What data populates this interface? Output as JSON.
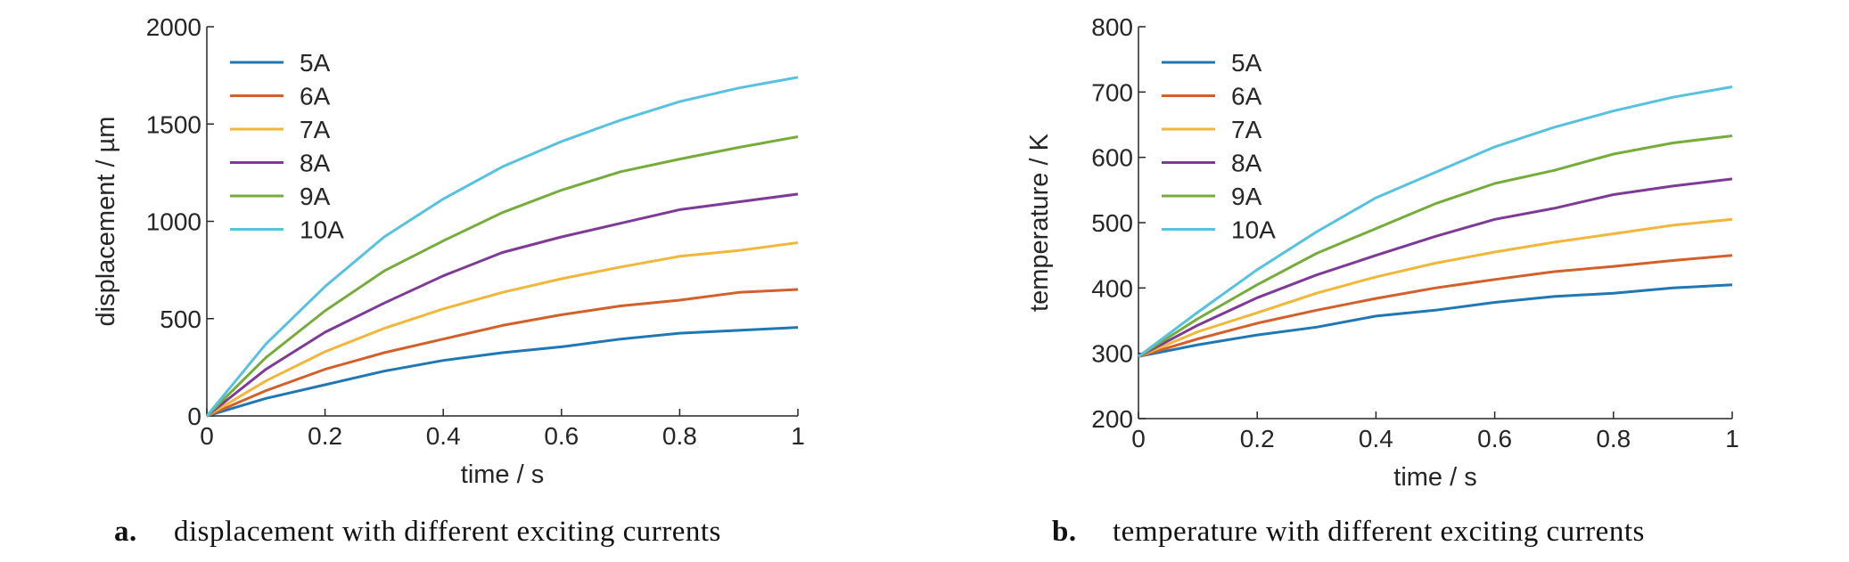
{
  "colors": {
    "5A": "#1f77b4",
    "6A": "#d35f2a",
    "7A": "#f0b73a",
    "8A": "#7e3a96",
    "9A": "#76ac3a",
    "10A": "#56c2e0",
    "axis": "#262626"
  },
  "chart_data": [
    {
      "type": "line",
      "caption_letter": "a.",
      "caption_text": "displacement with different exciting currents",
      "xlabel": "time / s",
      "ylabel": "displacement / µm",
      "xlim": [
        0,
        1
      ],
      "ylim": [
        0,
        2000
      ],
      "xticks": [
        0,
        0.2,
        0.4,
        0.6,
        0.8,
        1
      ],
      "xtick_labels": [
        "0",
        "0.2",
        "0.4",
        "0.6",
        "0.8",
        "1"
      ],
      "yticks": [
        0,
        500,
        1000,
        1500,
        2000
      ],
      "ytick_labels": [
        "0",
        "500",
        "1000",
        "1500",
        "2000"
      ],
      "legend_position": "top-left",
      "grid": false,
      "x": [
        0,
        0.1,
        0.2,
        0.3,
        0.4,
        0.5,
        0.6,
        0.7,
        0.8,
        0.9,
        1.0
      ],
      "series": [
        {
          "name": "5A",
          "values": [
            0,
            90,
            160,
            230,
            285,
            325,
            355,
            395,
            425,
            440,
            455
          ]
        },
        {
          "name": "6A",
          "values": [
            0,
            130,
            240,
            325,
            395,
            465,
            520,
            565,
            595,
            635,
            650
          ]
        },
        {
          "name": "7A",
          "values": [
            0,
            180,
            330,
            450,
            550,
            635,
            705,
            765,
            820,
            850,
            890
          ]
        },
        {
          "name": "8A",
          "values": [
            0,
            240,
            430,
            580,
            720,
            840,
            920,
            990,
            1060,
            1100,
            1140
          ]
        },
        {
          "name": "9A",
          "values": [
            0,
            300,
            540,
            745,
            900,
            1045,
            1160,
            1255,
            1320,
            1380,
            1435
          ]
        },
        {
          "name": "10A",
          "values": [
            0,
            370,
            665,
            920,
            1115,
            1280,
            1410,
            1520,
            1615,
            1685,
            1740
          ]
        }
      ]
    },
    {
      "type": "line",
      "caption_letter": "b.",
      "caption_text": "temperature with different exciting currents",
      "xlabel": "time / s",
      "ylabel": "temperature / K",
      "xlim": [
        0,
        1
      ],
      "ylim": [
        200,
        800
      ],
      "xticks": [
        0,
        0.2,
        0.4,
        0.6,
        0.8,
        1
      ],
      "xtick_labels": [
        "0",
        "0.2",
        "0.4",
        "0.6",
        "0.8",
        "1"
      ],
      "yticks": [
        200,
        300,
        400,
        500,
        600,
        700,
        800
      ],
      "ytick_labels": [
        "200",
        "300",
        "400",
        "500",
        "600",
        "700",
        "800"
      ],
      "legend_position": "top-left",
      "grid": false,
      "x": [
        0,
        0.1,
        0.2,
        0.3,
        0.4,
        0.5,
        0.6,
        0.7,
        0.8,
        0.9,
        1.0
      ],
      "series": [
        {
          "name": "5A",
          "values": [
            295,
            313,
            328,
            340,
            357,
            366,
            378,
            387,
            392,
            400,
            405
          ]
        },
        {
          "name": "6A",
          "values": [
            295,
            322,
            346,
            366,
            384,
            400,
            413,
            425,
            433,
            442,
            450
          ]
        },
        {
          "name": "7A",
          "values": [
            295,
            333,
            362,
            392,
            417,
            438,
            455,
            470,
            483,
            496,
            505
          ]
        },
        {
          "name": "8A",
          "values": [
            295,
            343,
            385,
            420,
            450,
            479,
            505,
            522,
            543,
            556,
            567
          ]
        },
        {
          "name": "9A",
          "values": [
            295,
            353,
            405,
            453,
            491,
            529,
            560,
            580,
            605,
            622,
            633
          ]
        },
        {
          "name": "10A",
          "values": [
            295,
            363,
            428,
            486,
            538,
            577,
            616,
            646,
            671,
            692,
            708
          ]
        }
      ]
    }
  ]
}
